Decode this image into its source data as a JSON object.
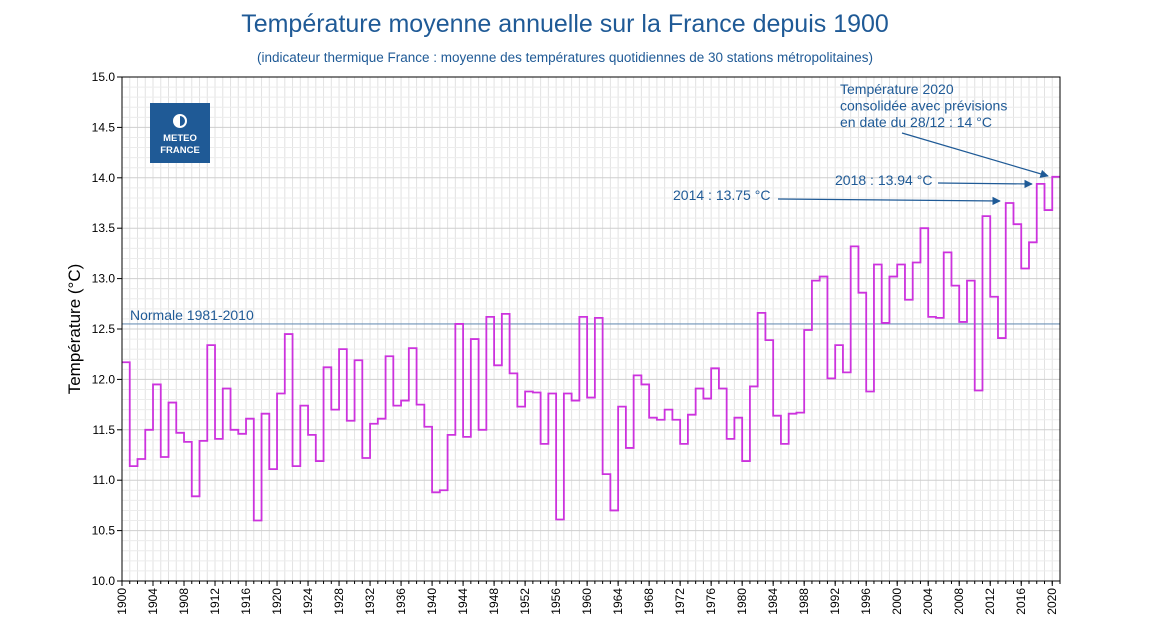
{
  "header": {
    "title": "Température moyenne annuelle sur la France depuis 1900",
    "subtitle": "(indicateur thermique France : moyenne des températures quotidiennes de 30 stations métropolitaines)"
  },
  "logo": {
    "line1": "METEO",
    "line2": "FRANCE",
    "color": "#1f5a96"
  },
  "chart_data": {
    "type": "line",
    "style": "step",
    "title": "Température moyenne annuelle sur la France depuis 1900",
    "subtitle": "(indicateur thermique France : moyenne des températures quotidiennes de 30 stations métropolitaines)",
    "xlabel": "",
    "ylabel": "Température (°C)",
    "xlim": [
      1900,
      2021
    ],
    "ylim": [
      10.0,
      15.0
    ],
    "y_ticks": [
      10.0,
      10.5,
      11.0,
      11.5,
      12.0,
      12.5,
      13.0,
      13.5,
      14.0,
      14.5,
      15.0
    ],
    "y_tick_labels": [
      "10.0",
      "10.5",
      "11.0",
      "11.5",
      "12.0",
      "12.5",
      "13.0",
      "13.5",
      "14.0",
      "14.5",
      "15.0"
    ],
    "x_ticks": [
      1900,
      1904,
      1908,
      1912,
      1916,
      1920,
      1924,
      1928,
      1932,
      1936,
      1940,
      1944,
      1948,
      1952,
      1956,
      1960,
      1964,
      1968,
      1972,
      1976,
      1980,
      1984,
      1988,
      1992,
      1996,
      2000,
      2004,
      2008,
      2012,
      2016,
      2020
    ],
    "x_tick_labels": [
      "1900",
      "1904",
      "1908",
      "1912",
      "1916",
      "1920",
      "1924",
      "1928",
      "1932",
      "1936",
      "1940",
      "1944",
      "1948",
      "1952",
      "1956",
      "1960",
      "1964",
      "1968",
      "1972",
      "1976",
      "1980",
      "1984",
      "1988",
      "1992",
      "1996",
      "2000",
      "2004",
      "2008",
      "2012",
      "2016",
      "2020"
    ],
    "grid": true,
    "series": [
      {
        "name": "",
        "color": "#cc33dd",
        "x": [
          1900,
          1901,
          1902,
          1903,
          1904,
          1905,
          1906,
          1907,
          1908,
          1909,
          1910,
          1911,
          1912,
          1913,
          1914,
          1915,
          1916,
          1917,
          1918,
          1919,
          1920,
          1921,
          1922,
          1923,
          1924,
          1925,
          1926,
          1927,
          1928,
          1929,
          1930,
          1931,
          1932,
          1933,
          1934,
          1935,
          1936,
          1937,
          1938,
          1939,
          1940,
          1941,
          1942,
          1943,
          1944,
          1945,
          1946,
          1947,
          1948,
          1949,
          1950,
          1951,
          1952,
          1953,
          1954,
          1955,
          1956,
          1957,
          1958,
          1959,
          1960,
          1961,
          1962,
          1963,
          1964,
          1965,
          1966,
          1967,
          1968,
          1969,
          1970,
          1971,
          1972,
          1973,
          1974,
          1975,
          1976,
          1977,
          1978,
          1979,
          1980,
          1981,
          1982,
          1983,
          1984,
          1985,
          1986,
          1987,
          1988,
          1989,
          1990,
          1991,
          1992,
          1993,
          1994,
          1995,
          1996,
          1997,
          1998,
          1999,
          2000,
          2001,
          2002,
          2003,
          2004,
          2005,
          2006,
          2007,
          2008,
          2009,
          2010,
          2011,
          2012,
          2013,
          2014,
          2015,
          2016,
          2017,
          2018,
          2019,
          2020
        ],
        "values": [
          12.17,
          11.14,
          11.21,
          11.5,
          11.95,
          11.23,
          11.77,
          11.47,
          11.38,
          10.84,
          11.39,
          12.34,
          11.41,
          11.91,
          11.5,
          11.46,
          11.61,
          10.6,
          11.66,
          11.11,
          11.86,
          12.45,
          11.14,
          11.74,
          11.45,
          11.19,
          12.12,
          11.7,
          12.3,
          11.59,
          12.19,
          11.22,
          11.56,
          11.61,
          12.23,
          11.74,
          11.79,
          12.31,
          11.75,
          11.53,
          10.88,
          10.9,
          11.45,
          12.55,
          11.43,
          12.4,
          11.5,
          12.62,
          12.14,
          12.65,
          12.06,
          11.73,
          11.88,
          11.87,
          11.36,
          11.86,
          10.61,
          11.86,
          11.79,
          12.62,
          11.82,
          12.61,
          11.06,
          10.7,
          11.73,
          11.32,
          12.04,
          11.95,
          11.62,
          11.6,
          11.7,
          11.6,
          11.36,
          11.65,
          11.91,
          11.81,
          12.11,
          11.91,
          11.41,
          11.62,
          11.19,
          11.93,
          12.66,
          12.39,
          11.64,
          11.36,
          11.66,
          11.67,
          12.49,
          12.98,
          13.02,
          12.01,
          12.34,
          12.07,
          13.32,
          12.86,
          11.88,
          13.14,
          12.56,
          13.02,
          13.14,
          12.79,
          13.16,
          13.5,
          12.62,
          12.61,
          13.26,
          12.93,
          12.57,
          12.98,
          11.89,
          13.62,
          12.82,
          12.41,
          13.75,
          13.54,
          13.1,
          13.36,
          13.94,
          13.68,
          14.01
        ]
      }
    ],
    "reference_line": {
      "label": "Normale 1981-2010",
      "value": 12.55,
      "color": "#6f93b8"
    },
    "annotations": [
      {
        "text_lines": [
          "Température 2020",
          "consolidée avec prévisions",
          "en date du 28/12 : 14 °C"
        ],
        "target_year": 2020,
        "target_value": 14.01
      },
      {
        "text_lines": [
          "2018 : 13.94 °C"
        ],
        "target_year": 2018,
        "target_value": 13.94
      },
      {
        "text_lines": [
          "2014 : 13.75 °C"
        ],
        "target_year": 2014,
        "target_value": 13.75
      }
    ],
    "annotation_color": "#1f5a96"
  }
}
